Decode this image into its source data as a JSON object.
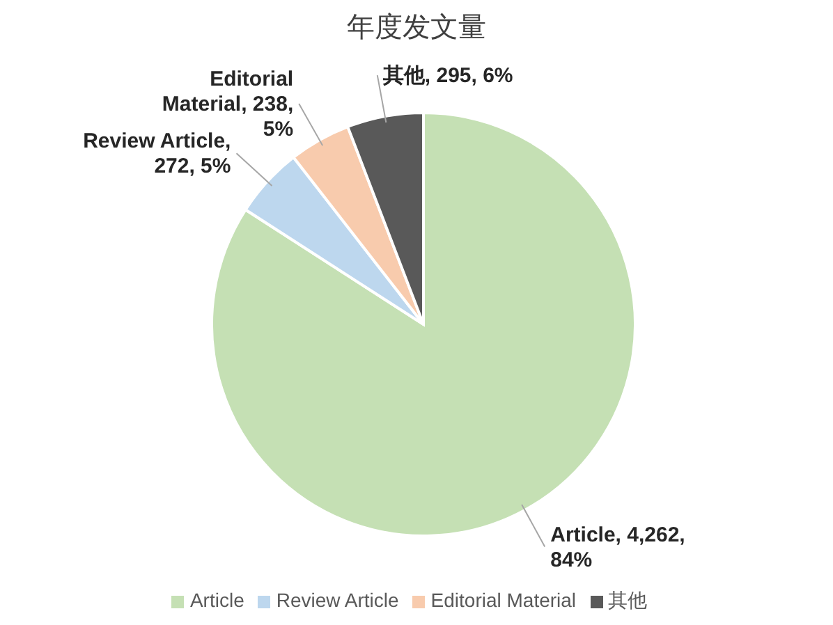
{
  "chart_data": {
    "type": "pie",
    "title": "年度发文量",
    "categories": [
      "Article",
      "Review Article",
      "Editorial Material",
      "其他"
    ],
    "values": [
      4262,
      272,
      238,
      295
    ],
    "colors": [
      "#c5e0b4",
      "#bdd7ee",
      "#f8cbad",
      "#595959"
    ],
    "value_labels": [
      "Article, 4,262, 84%",
      "Review Article, 272, 5%",
      "Editorial Material, 238, 5%",
      "其他, 295, 6%"
    ],
    "legend": "bottom"
  }
}
